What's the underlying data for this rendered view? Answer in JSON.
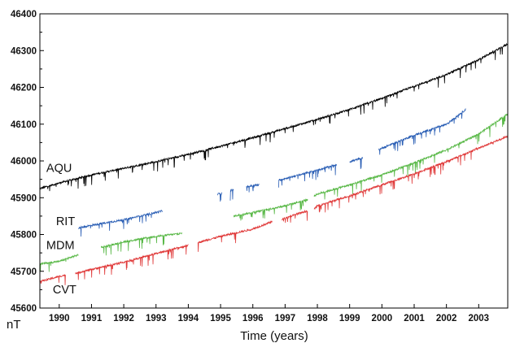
{
  "chart_data": {
    "type": "line",
    "title": "",
    "xlabel": "Time (years)",
    "ylabel": "nT",
    "xlim": [
      1989.4,
      2003.9
    ],
    "ylim": [
      45600,
      46400
    ],
    "x_ticks": [
      1990,
      1991,
      1992,
      1993,
      1994,
      1995,
      1996,
      1997,
      1998,
      1999,
      2000,
      2001,
      2002,
      2003
    ],
    "x_tick_labels": [
      "1990",
      "1991",
      "1992",
      "1993",
      "1994",
      "1995",
      "1996",
      "1997",
      "1998",
      "1999",
      "2000",
      "2001",
      "2002",
      "2003"
    ],
    "y_ticks": [
      45600,
      45700,
      45800,
      45900,
      46000,
      46100,
      46200,
      46300,
      46400
    ],
    "y_tick_labels": [
      "45600",
      "45700",
      "45800",
      "45900",
      "46000",
      "46100",
      "46200",
      "46300",
      "46400"
    ],
    "grid": false,
    "legend": "none (series labelled directly on the plot)",
    "series": [
      {
        "name": "AQU",
        "color": "#000000",
        "segments": [
          {
            "x": [
              1989.4,
              1990,
              1991,
              1992,
              1993,
              1994,
              1995,
              1996,
              1997,
              1998,
              1999,
              2000,
              2001,
              2002,
              2003,
              2003.9
            ],
            "y": [
              45925,
              45940,
              45962,
              45980,
              45998,
              46018,
              46040,
              46063,
              46088,
              46113,
              46140,
              46170,
              46203,
              46235,
              46275,
              46318
            ]
          }
        ]
      },
      {
        "name": "RIT",
        "color": "#2b5fb5",
        "segments": [
          {
            "x": [
              1990.6,
              1991,
              1992,
              1993.2
            ],
            "y": [
              45818,
              45825,
              45840,
              45864
            ]
          },
          {
            "x": [
              1994.9,
              1995.05
            ],
            "y": [
              45910,
              45912
            ]
          },
          {
            "x": [
              1995.3,
              1995.4
            ],
            "y": [
              45920,
              45921
            ]
          },
          {
            "x": [
              1995.8,
              1996.2
            ],
            "y": [
              45930,
              45935
            ]
          },
          {
            "x": [
              1996.8,
              1997,
              1998,
              1998.6
            ],
            "y": [
              45948,
              45952,
              45975,
              45990
            ]
          },
          {
            "x": [
              1999.0,
              1999.4
            ],
            "y": [
              45998,
              46008
            ]
          },
          {
            "x": [
              1999.9,
              2000,
              2001,
              2002,
              2002.6
            ],
            "y": [
              46030,
              46035,
              46070,
              46100,
              46140
            ]
          }
        ]
      },
      {
        "name": "MDM",
        "color": "#58b846",
        "segments": [
          {
            "x": [
              1989.4,
              1990,
              1990.6
            ],
            "y": [
              45720,
              45727,
              45745
            ]
          },
          {
            "x": [
              1991.3,
              1992,
              1993,
              1993.8
            ],
            "y": [
              45765,
              45780,
              45795,
              45803
            ]
          },
          {
            "x": [
              1995.4,
              1996,
              1997,
              1997.7
            ],
            "y": [
              45850,
              45860,
              45878,
              45895
            ]
          },
          {
            "x": [
              1997.9,
              1998,
              1999,
              2000,
              2001,
              2002,
              2003,
              2003.9
            ],
            "y": [
              45905,
              45910,
              45935,
              45962,
              45995,
              46030,
              46073,
              46128
            ]
          }
        ]
      },
      {
        "name": "CVT",
        "color": "#e03a3a",
        "segments": [
          {
            "x": [
              1989.4,
              1990,
              1990.2
            ],
            "y": [
              45672,
              45686,
              45690
            ]
          },
          {
            "x": [
              1990.5,
              1991,
              1992,
              1993,
              1994
            ],
            "y": [
              45695,
              45705,
              45725,
              45748,
              45771
            ]
          },
          {
            "x": [
              1994.3,
              1995,
              1996,
              1996.6
            ],
            "y": [
              45778,
              45795,
              45815,
              45835
            ]
          },
          {
            "x": [
              1996.9,
              1997,
              1997.7
            ],
            "y": [
              45840,
              45845,
              45865
            ]
          },
          {
            "x": [
              1997.9,
              1998,
              1999,
              2000,
              2001,
              2002,
              2003,
              2003.9
            ],
            "y": [
              45868,
              45878,
              45905,
              45935,
              45965,
              45998,
              46035,
              46067
            ]
          }
        ]
      }
    ],
    "annotations": [
      {
        "text": "AQU",
        "x": 1989.6,
        "y": 45970
      },
      {
        "text": "RIT",
        "x": 1989.9,
        "y": 45825
      },
      {
        "text": "MDM",
        "x": 1989.6,
        "y": 45760
      },
      {
        "text": "CVT",
        "x": 1989.8,
        "y": 45640
      }
    ]
  }
}
